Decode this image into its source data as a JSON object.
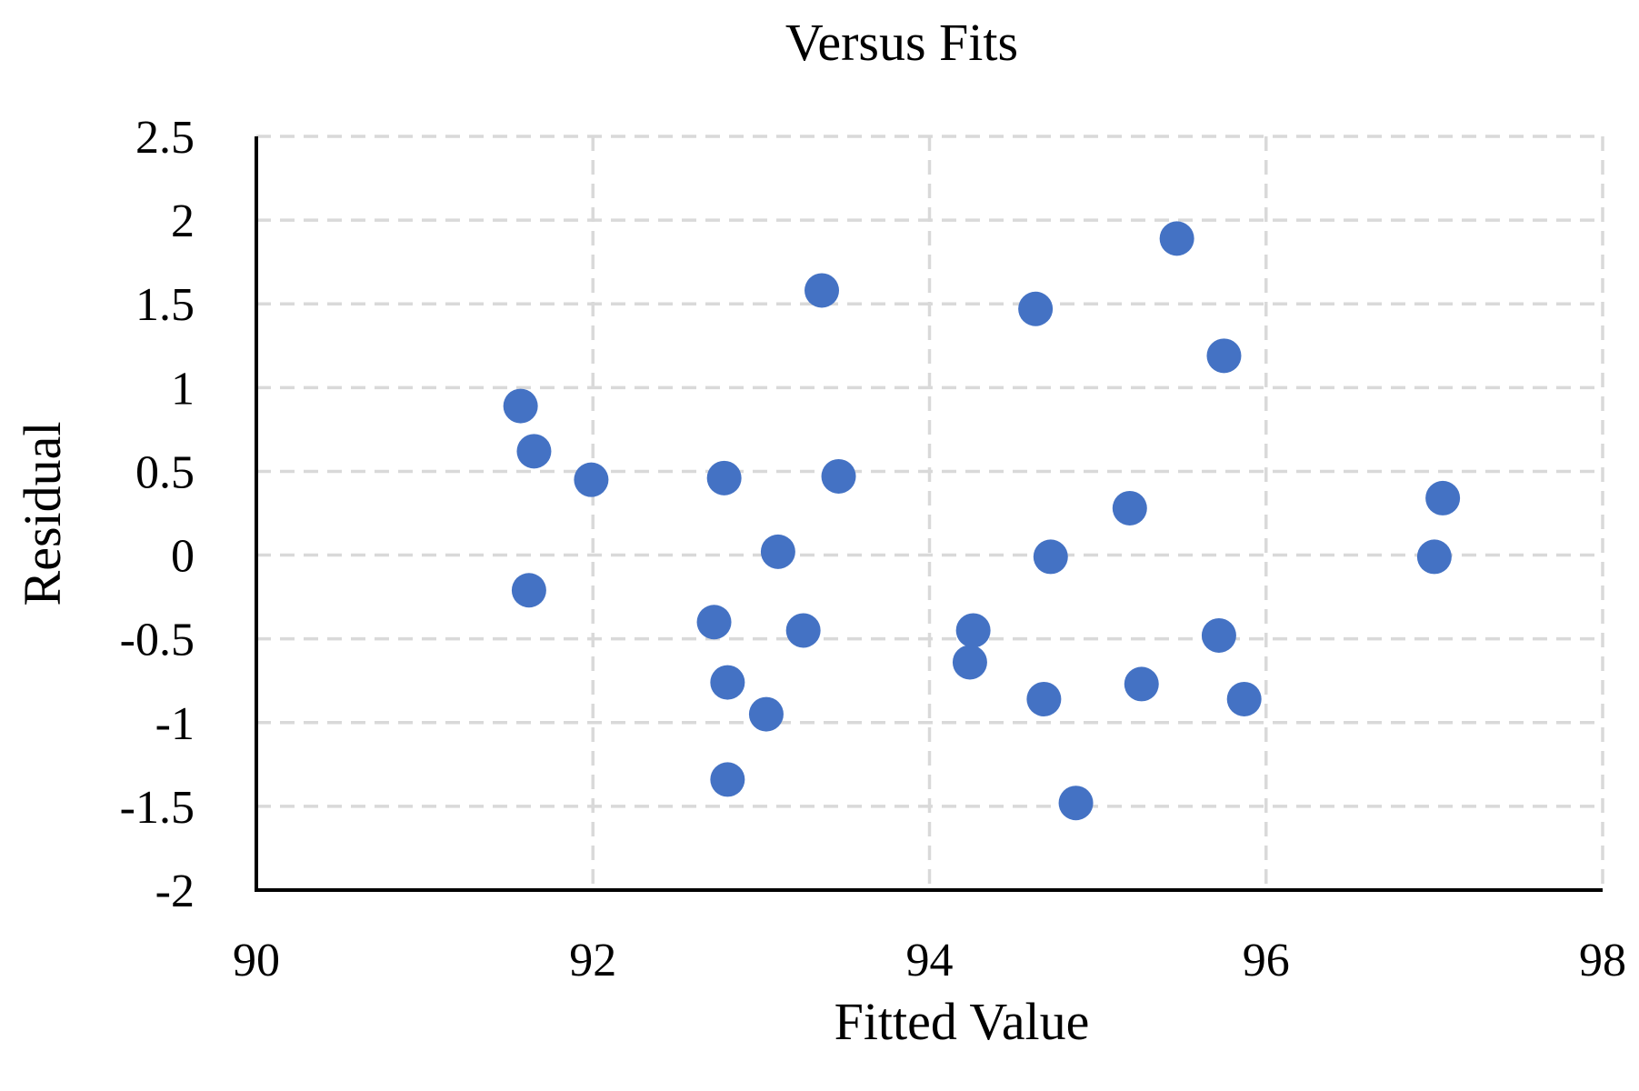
{
  "chart_data": {
    "type": "scatter",
    "title": "Versus Fits",
    "xlabel": "Fitted Value",
    "ylabel": "Residual",
    "xlim": [
      90,
      98
    ],
    "ylim": [
      -2,
      2.5
    ],
    "x_ticks": [
      90,
      92,
      94,
      96,
      98
    ],
    "y_ticks": [
      -2,
      -1.5,
      -1,
      -0.5,
      0,
      0.5,
      1,
      1.5,
      2,
      2.5
    ],
    "x_tick_labels": [
      "90",
      "92",
      "94",
      "96",
      "98"
    ],
    "y_tick_labels": [
      "-2",
      "-1.5",
      "-1",
      "-0.5",
      "0",
      "0.5",
      "1",
      "1.5",
      "2",
      "2.5"
    ],
    "grid": true,
    "legend": "none",
    "marker_color": "#4472C4",
    "series": [
      {
        "points": [
          {
            "x": 91.57,
            "y": 0.89
          },
          {
            "x": 91.65,
            "y": 0.62
          },
          {
            "x": 91.62,
            "y": -0.21
          },
          {
            "x": 91.99,
            "y": 0.45
          },
          {
            "x": 92.72,
            "y": -0.4
          },
          {
            "x": 92.78,
            "y": 0.46
          },
          {
            "x": 92.8,
            "y": -0.76
          },
          {
            "x": 92.8,
            "y": -1.34
          },
          {
            "x": 93.03,
            "y": -0.95
          },
          {
            "x": 93.1,
            "y": 0.02
          },
          {
            "x": 93.25,
            "y": -0.45
          },
          {
            "x": 93.36,
            "y": 1.58
          },
          {
            "x": 93.46,
            "y": 0.47
          },
          {
            "x": 94.24,
            "y": -0.64
          },
          {
            "x": 94.26,
            "y": -0.45
          },
          {
            "x": 94.63,
            "y": 1.47
          },
          {
            "x": 94.68,
            "y": -0.86
          },
          {
            "x": 94.72,
            "y": -0.01
          },
          {
            "x": 94.87,
            "y": -1.48
          },
          {
            "x": 95.19,
            "y": 0.28
          },
          {
            "x": 95.26,
            "y": -0.77
          },
          {
            "x": 95.47,
            "y": 1.89
          },
          {
            "x": 95.72,
            "y": -0.48
          },
          {
            "x": 95.75,
            "y": 1.19
          },
          {
            "x": 95.87,
            "y": -0.86
          },
          {
            "x": 97.0,
            "y": -0.01
          },
          {
            "x": 97.05,
            "y": 0.34
          }
        ]
      }
    ]
  }
}
